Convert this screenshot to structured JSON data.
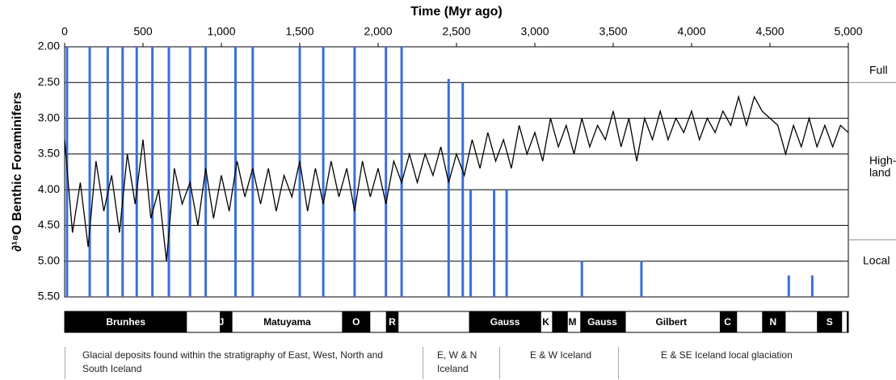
{
  "chart_data": {
    "type": "line",
    "x_label": "Time (Myr ago)",
    "y_label": "∂¹⁸O Benthic Foraminifers",
    "xlim": [
      0,
      5000
    ],
    "xticks": [
      0,
      500,
      {
        "value": 1000,
        "label": "1,000"
      },
      {
        "value": 1500,
        "label": "1,500"
      },
      {
        "value": 2000,
        "label": "2,000"
      },
      {
        "value": 2500,
        "label": "2,500"
      },
      {
        "value": 3000,
        "label": "3,000"
      },
      {
        "value": 3500,
        "label": "3,500"
      },
      {
        "value": 4000,
        "label": "4,000"
      },
      {
        "value": 4500,
        "label": "4,500"
      },
      {
        "value": 5000,
        "label": "5,000"
      }
    ],
    "ylim": [
      2.0,
      5.5
    ],
    "y_inverted": true,
    "yticks": [
      {
        "value": 2.0,
        "label": "2.00"
      },
      {
        "value": 2.5,
        "label": "2.50"
      },
      {
        "value": 3.0,
        "label": "3.00"
      },
      {
        "value": 3.5,
        "label": "3.50"
      },
      {
        "value": 4.0,
        "label": "4.00"
      },
      {
        "value": 4.5,
        "label": "4.50"
      },
      {
        "value": 5.0,
        "label": "5.00"
      },
      {
        "value": 5.5,
        "label": "5.50"
      }
    ],
    "grid": true,
    "zone_bounds": [
      2.5,
      4.7
    ],
    "zone_labels": [
      "Full",
      "High-",
      "land",
      "Local"
    ],
    "series": [
      {
        "color": "#000000",
        "x": [
          0,
          50,
          100,
          150,
          200,
          250,
          300,
          350,
          400,
          450,
          500,
          550,
          600,
          650,
          700,
          750,
          800,
          850,
          900,
          950,
          1000,
          1050,
          1100,
          1150,
          1200,
          1250,
          1300,
          1350,
          1400,
          1450,
          1500,
          1550,
          1600,
          1650,
          1700,
          1750,
          1800,
          1850,
          1900,
          1950,
          2000,
          2050,
          2100,
          2150,
          2200,
          2250,
          2300,
          2350,
          2400,
          2450,
          2500,
          2550,
          2600,
          2650,
          2700,
          2750,
          2800,
          2850,
          2900,
          2950,
          3000,
          3050,
          3100,
          3150,
          3200,
          3250,
          3300,
          3350,
          3400,
          3450,
          3500,
          3550,
          3600,
          3650,
          3700,
          3750,
          3800,
          3850,
          3900,
          3950,
          4000,
          4050,
          4100,
          4150,
          4200,
          4250,
          4300,
          4350,
          4400,
          4450,
          4500,
          4550,
          4600,
          4650,
          4700,
          4750,
          4800,
          4850,
          4900,
          4950,
          5000
        ],
        "values": [
          3.3,
          4.6,
          3.9,
          4.8,
          3.6,
          4.3,
          3.8,
          4.6,
          3.5,
          4.2,
          3.3,
          4.4,
          4.0,
          5.0,
          3.7,
          4.2,
          3.9,
          4.5,
          3.7,
          4.4,
          3.8,
          4.3,
          3.6,
          4.1,
          3.7,
          4.2,
          3.7,
          4.3,
          3.8,
          4.1,
          3.6,
          4.3,
          3.7,
          4.2,
          3.6,
          4.1,
          3.7,
          4.3,
          3.6,
          4.1,
          3.7,
          4.2,
          3.6,
          3.9,
          3.5,
          3.9,
          3.5,
          3.8,
          3.4,
          3.9,
          3.5,
          3.8,
          3.3,
          3.7,
          3.2,
          3.6,
          3.3,
          3.7,
          3.1,
          3.5,
          3.2,
          3.6,
          3.0,
          3.4,
          3.1,
          3.5,
          3.0,
          3.4,
          3.1,
          3.3,
          2.9,
          3.4,
          3.0,
          3.6,
          3.0,
          3.3,
          2.9,
          3.3,
          3.0,
          3.2,
          2.9,
          3.3,
          3.0,
          3.2,
          2.9,
          3.1,
          2.7,
          3.1,
          2.7,
          2.9,
          3.0,
          3.1,
          3.5,
          3.1,
          3.4,
          3.0,
          3.4,
          3.1,
          3.4,
          3.1,
          3.2
        ]
      }
    ],
    "glaciations": {
      "color": "#3a6fd8",
      "x": [
        15,
        160,
        275,
        370,
        460,
        560,
        665,
        800,
        900,
        1090,
        1200,
        1500,
        1650,
        1850,
        2050,
        2150,
        2450,
        2540,
        2590,
        2740,
        2820,
        3300,
        3680,
        4620,
        4770
      ],
      "top": [
        2.0,
        2.0,
        2.0,
        2.0,
        2.0,
        2.0,
        2.0,
        2.0,
        2.0,
        2.0,
        2.0,
        2.0,
        2.0,
        2.0,
        2.0,
        2.0,
        2.45,
        2.5,
        4.0,
        4.0,
        4.0,
        5.0,
        5.0,
        5.2,
        5.2
      ]
    },
    "polarity": {
      "normal": [
        [
          0,
          780
        ],
        [
          990,
          1070
        ],
        [
          1770,
          1950
        ],
        [
          2050,
          2130
        ],
        [
          2580,
          3040
        ],
        [
          3110,
          3210
        ],
        [
          3290,
          3580
        ],
        [
          4180,
          4290
        ],
        [
          4450,
          4600
        ],
        [
          4800,
          4960
        ],
        [
          4990,
          5000
        ]
      ],
      "labels": [
        "Brunhes",
        "J",
        "Matuyama",
        "O",
        "R",
        "Gauss",
        "K",
        "M",
        "Gauss",
        "Gilbert",
        "C",
        "N",
        "S"
      ],
      "label_x": [
        390,
        1000,
        1420,
        1860,
        2090,
        2810,
        3070,
        3240,
        3430,
        3870,
        4230,
        4520,
        4880
      ]
    },
    "notes": [
      "Glacial deposits found within the stratigraphy of East, West, North and South Iceland",
      "E, W & N Iceland",
      "E & W Iceland",
      "E & SE Iceland local glaciation"
    ]
  }
}
